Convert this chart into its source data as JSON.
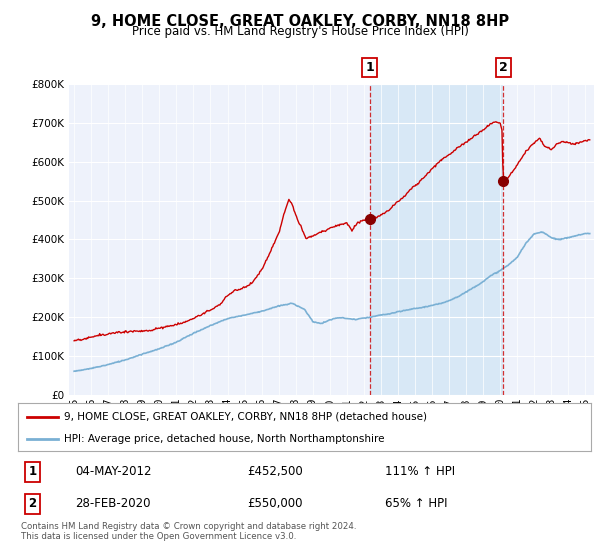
{
  "title": "9, HOME CLOSE, GREAT OAKLEY, CORBY, NN18 8HP",
  "subtitle": "Price paid vs. HM Land Registry's House Price Index (HPI)",
  "legend_line1": "9, HOME CLOSE, GREAT OAKLEY, CORBY, NN18 8HP (detached house)",
  "legend_line2": "HPI: Average price, detached house, North Northamptonshire",
  "footnote": "Contains HM Land Registry data © Crown copyright and database right 2024.\nThis data is licensed under the Open Government Licence v3.0.",
  "sale1_date": "04-MAY-2012",
  "sale1_price": "£452,500",
  "sale1_hpi": "111% ↑ HPI",
  "sale2_date": "28-FEB-2020",
  "sale2_price": "£550,000",
  "sale2_hpi": "65% ↑ HPI",
  "sale1_year": 2012.35,
  "sale1_value": 452500,
  "sale2_year": 2020.17,
  "sale2_value": 550000,
  "hpi_color": "#7ab0d4",
  "hpi_fill_color": "#dce9f5",
  "price_color": "#cc0000",
  "sale_marker_color": "#880000",
  "ylim": [
    0,
    800000
  ],
  "yticks": [
    0,
    100000,
    200000,
    300000,
    400000,
    500000,
    600000,
    700000,
    800000
  ],
  "xlim_start": 1994.7,
  "xlim_end": 2025.5,
  "plot_bg_color": "#eef2fb",
  "grid_color": "#ffffff",
  "shaded_region_color": "#d0e4f5"
}
